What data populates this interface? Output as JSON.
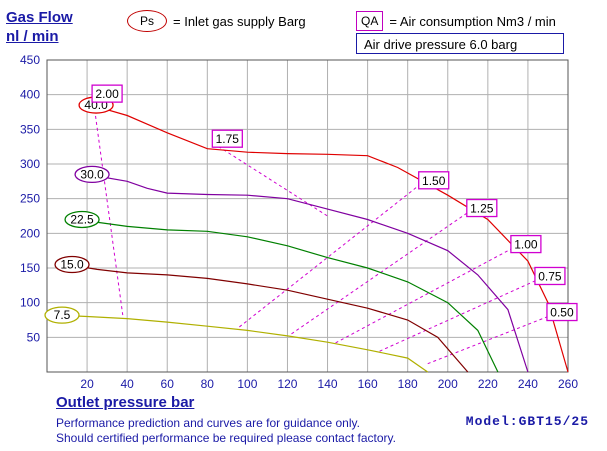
{
  "header": {
    "ylabel_line1": "Gas Flow",
    "ylabel_line2": "nl / min",
    "ps_badge": "Ps",
    "ps_text": "= Inlet gas supply  Barg",
    "qa_badge": "QA",
    "qa_text": "= Air consumption  Nm3 / min",
    "air_drive": "Air drive pressure  6.0 barg"
  },
  "footer": {
    "xlabel": "Outlet pressure   bar",
    "note1": "Performance prediction and curves are for guidance only.",
    "note2": "Should certified performance be required please contact factory.",
    "model": "Model:GBT15/25"
  },
  "colors": {
    "grid": "#b0b0b0",
    "axis_text": "#1a1aa6",
    "air_consumption_line": "#d000d0"
  },
  "chart_data": {
    "type": "line",
    "xlim": [
      0,
      260
    ],
    "ylim": [
      0,
      450
    ],
    "x_ticks": [
      20,
      40,
      60,
      80,
      100,
      120,
      140,
      160,
      180,
      200,
      220,
      240,
      260
    ],
    "y_ticks": [
      50,
      100,
      150,
      200,
      250,
      300,
      350,
      400,
      450
    ],
    "grid": true,
    "series": [
      {
        "label": "40.0",
        "color": "#e00000",
        "points": [
          [
            22,
            385
          ],
          [
            40,
            370
          ],
          [
            60,
            345
          ],
          [
            80,
            322
          ],
          [
            100,
            317
          ],
          [
            120,
            315
          ],
          [
            140,
            314
          ],
          [
            160,
            312
          ],
          [
            175,
            295
          ],
          [
            200,
            255
          ],
          [
            220,
            220
          ],
          [
            240,
            160
          ],
          [
            250,
            100
          ],
          [
            260,
            0
          ]
        ]
      },
      {
        "label": "30.0",
        "color": "#8000a0",
        "points": [
          [
            20,
            285
          ],
          [
            40,
            275
          ],
          [
            50,
            265
          ],
          [
            60,
            258
          ],
          [
            80,
            256
          ],
          [
            100,
            255
          ],
          [
            120,
            250
          ],
          [
            140,
            235
          ],
          [
            160,
            220
          ],
          [
            180,
            200
          ],
          [
            200,
            175
          ],
          [
            215,
            140
          ],
          [
            230,
            90
          ],
          [
            240,
            0
          ]
        ]
      },
      {
        "label": "22.5",
        "color": "#008000",
        "points": [
          [
            15,
            220
          ],
          [
            40,
            210
          ],
          [
            60,
            205
          ],
          [
            80,
            203
          ],
          [
            100,
            195
          ],
          [
            120,
            182
          ],
          [
            140,
            165
          ],
          [
            160,
            150
          ],
          [
            180,
            130
          ],
          [
            200,
            100
          ],
          [
            215,
            60
          ],
          [
            225,
            0
          ]
        ]
      },
      {
        "label": "15.0",
        "color": "#800000",
        "points": [
          [
            10,
            155
          ],
          [
            25,
            148
          ],
          [
            40,
            143
          ],
          [
            60,
            140
          ],
          [
            80,
            135
          ],
          [
            100,
            127
          ],
          [
            120,
            118
          ],
          [
            140,
            105
          ],
          [
            160,
            92
          ],
          [
            180,
            75
          ],
          [
            195,
            50
          ],
          [
            210,
            0
          ]
        ]
      },
      {
        "label": "7.5",
        "color": "#b0b000",
        "points": [
          [
            5,
            82
          ],
          [
            20,
            80
          ],
          [
            40,
            77
          ],
          [
            60,
            72
          ],
          [
            80,
            66
          ],
          [
            100,
            60
          ],
          [
            120,
            52
          ],
          [
            140,
            43
          ],
          [
            160,
            32
          ],
          [
            180,
            20
          ],
          [
            190,
            0
          ]
        ]
      }
    ],
    "air_consumption": [
      {
        "label": "2.00",
        "from": [
          23,
          395
        ],
        "to": [
          38,
          78
        ]
      },
      {
        "label": "1.75",
        "from": [
          83,
          330
        ],
        "to": [
          140,
          225
        ]
      },
      {
        "label": "1.50",
        "from": [
          96,
          65
        ],
        "to": [
          186,
          270
        ]
      },
      {
        "label": "1.25",
        "from": [
          122,
          55
        ],
        "to": [
          210,
          230
        ]
      },
      {
        "label": "1.00",
        "from": [
          144,
          42
        ],
        "to": [
          232,
          178
        ]
      },
      {
        "label": "0.75",
        "from": [
          166,
          30
        ],
        "to": [
          244,
          132
        ]
      },
      {
        "label": "0.50",
        "from": [
          190,
          12
        ],
        "to": [
          250,
          80
        ]
      }
    ]
  }
}
